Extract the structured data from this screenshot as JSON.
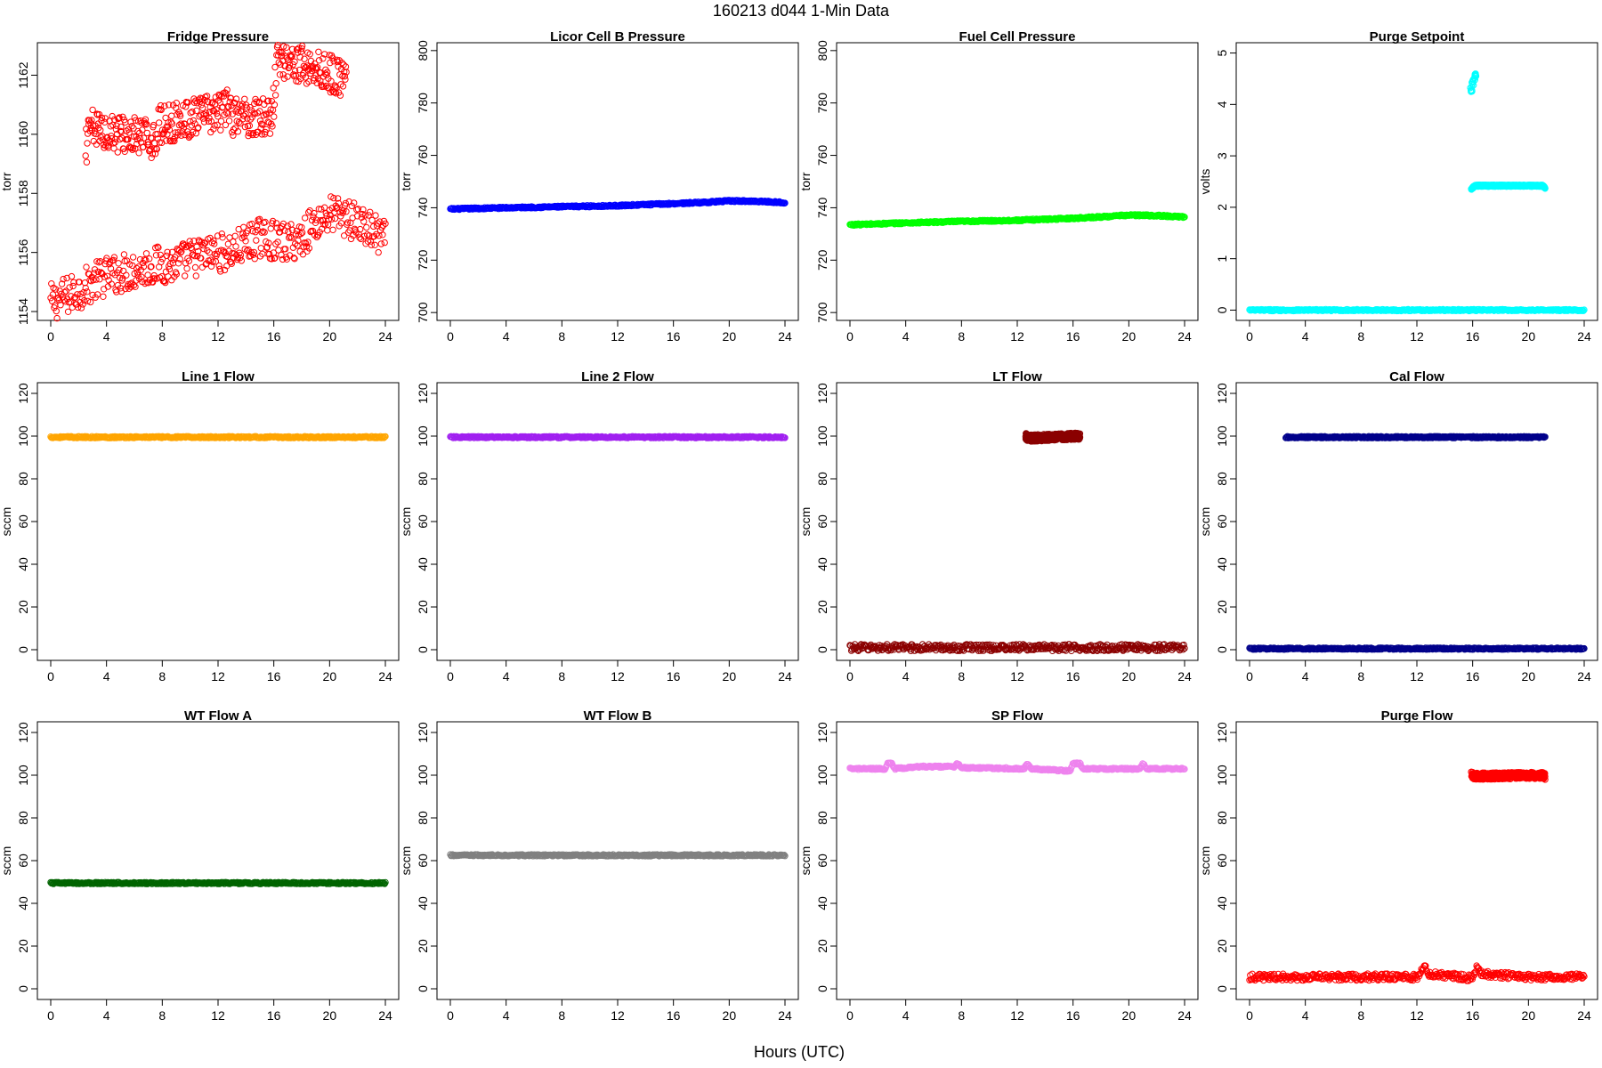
{
  "figure": {
    "title": "160213   d044   1-Min Data",
    "xlabel": "Hours (UTC)"
  },
  "chart_data": [
    {
      "type": "scatter",
      "title": "Fridge Pressure",
      "ylabel": "torr",
      "color": "#ff0000",
      "xlim": [
        0,
        24
      ],
      "ylim": [
        1153.7,
        1163.1
      ],
      "xticks": [
        "0",
        "4",
        "8",
        "12",
        "16",
        "20",
        "24"
      ],
      "yticks": [
        "1154",
        "1156",
        "1158",
        "1160",
        "1162"
      ],
      "series": [
        {
          "x": [
            0,
            1,
            2,
            3,
            4,
            5,
            6,
            7,
            8,
            9,
            10,
            11,
            12,
            13,
            14,
            15,
            16,
            17,
            18,
            19,
            20,
            21,
            22,
            23,
            24
          ],
          "y": [
            1154.3,
            1154.5,
            1154.7,
            1155.0,
            1155.2,
            1155.3,
            1155.4,
            1155.5,
            1155.6,
            1155.6,
            1155.8,
            1155.9,
            1156.0,
            1156.0,
            1156.3,
            1156.5,
            1156.4,
            1156.3,
            1156.5,
            1157.0,
            1157.3,
            1157.2,
            1157.0,
            1156.7,
            1156.4
          ]
        },
        {
          "x": [
            2.5,
            2.7,
            2.9,
            7.5,
            7.7,
            12.5,
            12.7,
            12.9,
            15.9,
            16.1,
            16.3,
            21.0,
            21.2
          ],
          "y": [
            1159.5,
            1159.9,
            1160.2,
            1159.8,
            1160.3,
            1160.8,
            1161.2,
            1160.6,
            1160.6,
            1161.8,
            1162.6,
            1161.9,
            1162.3
          ]
        }
      ]
    },
    {
      "type": "scatter",
      "title": "Licor Cell B Pressure",
      "ylabel": "torr",
      "color": "#0000ff",
      "xlim": [
        0,
        24
      ],
      "ylim": [
        697,
        803
      ],
      "xticks": [
        "0",
        "4",
        "8",
        "12",
        "16",
        "20",
        "24"
      ],
      "yticks": [
        "700",
        "720",
        "740",
        "760",
        "780",
        "800"
      ],
      "series": [
        {
          "x": [
            0,
            4,
            8,
            12,
            14,
            16,
            18,
            20,
            22,
            24
          ],
          "y": [
            739.5,
            740.0,
            740.4,
            740.8,
            741.2,
            741.6,
            742.0,
            742.6,
            742.5,
            742.0
          ]
        }
      ]
    },
    {
      "type": "scatter",
      "title": "Fuel Cell Pressure",
      "ylabel": "torr",
      "color": "#00ff00",
      "xlim": [
        0,
        24
      ],
      "ylim": [
        697,
        803
      ],
      "xticks": [
        "0",
        "4",
        "8",
        "12",
        "16",
        "20",
        "24"
      ],
      "yticks": [
        "700",
        "720",
        "740",
        "760",
        "780",
        "800"
      ],
      "series": [
        {
          "x": [
            0,
            4,
            8,
            12,
            14,
            16,
            18,
            20,
            22,
            24
          ],
          "y": [
            733.5,
            734.2,
            734.8,
            735.2,
            735.6,
            736.0,
            736.5,
            737.2,
            737.0,
            736.5
          ]
        }
      ]
    },
    {
      "type": "scatter",
      "title": "Purge Setpoint",
      "ylabel": "volts",
      "color": "#00ffff",
      "xlim": [
        0,
        24
      ],
      "ylim": [
        -0.2,
        5.2
      ],
      "xticks": [
        "0",
        "4",
        "8",
        "12",
        "16",
        "20",
        "24"
      ],
      "yticks": [
        "0",
        "1",
        "2",
        "3",
        "4",
        "5"
      ],
      "series": [
        {
          "x": [
            0,
            24
          ],
          "y": [
            0,
            0
          ]
        },
        {
          "x": [
            15.9,
            16.0,
            16.1,
            16.2
          ],
          "y": [
            4.3,
            4.4,
            4.5,
            4.6
          ]
        },
        {
          "x": [
            15.9,
            16.0,
            16.1,
            16.2,
            21.0,
            21.1,
            21.2
          ],
          "y": [
            2.35,
            2.38,
            2.4,
            2.42,
            2.42,
            2.4,
            2.38
          ]
        }
      ]
    },
    {
      "type": "scatter",
      "title": "Line 1 Flow",
      "ylabel": "sccm",
      "color": "#ffa500",
      "xlim": [
        0,
        24
      ],
      "ylim": [
        -5,
        125
      ],
      "xticks": [
        "0",
        "4",
        "8",
        "12",
        "16",
        "20",
        "24"
      ],
      "yticks": [
        "0",
        "20",
        "40",
        "60",
        "80",
        "100",
        "120"
      ],
      "series": [
        {
          "x": [
            0,
            24
          ],
          "y": [
            99.5,
            99.5
          ]
        }
      ]
    },
    {
      "type": "scatter",
      "title": "Line 2 Flow",
      "ylabel": "sccm",
      "color": "#a020f0",
      "xlim": [
        0,
        24
      ],
      "ylim": [
        -5,
        125
      ],
      "xticks": [
        "0",
        "4",
        "8",
        "12",
        "16",
        "20",
        "24"
      ],
      "yticks": [
        "0",
        "20",
        "40",
        "60",
        "80",
        "100",
        "120"
      ],
      "series": [
        {
          "x": [
            0,
            24
          ],
          "y": [
            99.5,
            99.5
          ]
        }
      ]
    },
    {
      "type": "scatter",
      "title": "LT Flow",
      "ylabel": "sccm",
      "color": "#8b0000",
      "xlim": [
        0,
        24
      ],
      "ylim": [
        -5,
        125
      ],
      "xticks": [
        "0",
        "4",
        "8",
        "12",
        "16",
        "20",
        "24"
      ],
      "yticks": [
        "0",
        "20",
        "40",
        "60",
        "80",
        "100",
        "120"
      ],
      "series": [
        {
          "x": [
            0,
            24
          ],
          "y": [
            1,
            1
          ]
        },
        {
          "x": [
            12.6,
            12.8,
            16.3,
            16.5
          ],
          "y": [
            100,
            99,
            100,
            100
          ]
        }
      ]
    },
    {
      "type": "scatter",
      "title": "Cal Flow",
      "ylabel": "sccm",
      "color": "#00008b",
      "xlim": [
        0,
        24
      ],
      "ylim": [
        -5,
        125
      ],
      "xticks": [
        "0",
        "4",
        "8",
        "12",
        "16",
        "20",
        "24"
      ],
      "yticks": [
        "0",
        "20",
        "40",
        "60",
        "80",
        "100",
        "120"
      ],
      "series": [
        {
          "x": [
            0,
            24
          ],
          "y": [
            0.5,
            0.5
          ]
        },
        {
          "x": [
            2.6,
            2.8,
            7.6,
            7.8,
            12.7,
            12.9,
            15.9,
            16.2,
            21.0,
            21.2
          ],
          "y": [
            99.5,
            99.5,
            99.5,
            99.5,
            99.5,
            99.5,
            99.5,
            99.5,
            99.5,
            99.5
          ]
        }
      ]
    },
    {
      "type": "scatter",
      "title": "WT Flow A",
      "ylabel": "sccm",
      "color": "#006400",
      "xlim": [
        0,
        24
      ],
      "ylim": [
        -5,
        125
      ],
      "xticks": [
        "0",
        "4",
        "8",
        "12",
        "16",
        "20",
        "24"
      ],
      "yticks": [
        "0",
        "20",
        "40",
        "60",
        "80",
        "100",
        "120"
      ],
      "series": [
        {
          "x": [
            0,
            24
          ],
          "y": [
            49.5,
            49.5
          ]
        }
      ]
    },
    {
      "type": "scatter",
      "title": "WT Flow B",
      "ylabel": "sccm",
      "color": "#808080",
      "xlim": [
        0,
        24
      ],
      "ylim": [
        -5,
        125
      ],
      "xticks": [
        "0",
        "4",
        "8",
        "12",
        "16",
        "20",
        "24"
      ],
      "yticks": [
        "0",
        "20",
        "40",
        "60",
        "80",
        "100",
        "120"
      ],
      "series": [
        {
          "x": [
            0,
            24
          ],
          "y": [
            62.5,
            62.5
          ]
        }
      ]
    },
    {
      "type": "scatter",
      "title": "SP Flow",
      "ylabel": "sccm",
      "color": "#ee82ee",
      "xlim": [
        0,
        24
      ],
      "ylim": [
        -5,
        125
      ],
      "xticks": [
        "0",
        "4",
        "8",
        "12",
        "16",
        "20",
        "24"
      ],
      "yticks": [
        "0",
        "20",
        "40",
        "60",
        "80",
        "100",
        "120"
      ],
      "series": [
        {
          "x": [
            0,
            2.5,
            2.7,
            3.0,
            3.2,
            5.0,
            7.5,
            7.7,
            8.0,
            12.5,
            12.7,
            13.0,
            15.8,
            16.0,
            16.5,
            16.7,
            20.8,
            21.0,
            21.3,
            24
          ],
          "y": [
            103,
            103,
            105.5,
            105.5,
            103,
            104,
            104,
            105.5,
            103.5,
            103,
            105.5,
            103,
            102,
            105.5,
            105.5,
            103,
            103,
            105.5,
            103,
            103
          ]
        }
      ]
    },
    {
      "type": "scatter",
      "title": "Purge Flow",
      "ylabel": "sccm",
      "color": "#ff0000",
      "xlim": [
        0,
        24
      ],
      "ylim": [
        -5,
        125
      ],
      "xticks": [
        "0",
        "4",
        "8",
        "12",
        "16",
        "20",
        "24"
      ],
      "yticks": [
        "0",
        "20",
        "40",
        "60",
        "80",
        "100",
        "120"
      ],
      "series": [
        {
          "x": [
            0,
            4,
            8,
            12,
            12.6,
            12.8,
            16,
            16.3,
            16.6,
            20,
            24
          ],
          "y": [
            5.5,
            5.5,
            5.5,
            5.5,
            11,
            7,
            5,
            10,
            7,
            5.5,
            5.5
          ]
        },
        {
          "x": [
            15.9,
            16.1,
            21.0,
            21.2
          ],
          "y": [
            100.5,
            99.5,
            100,
            99.5
          ]
        }
      ]
    }
  ]
}
